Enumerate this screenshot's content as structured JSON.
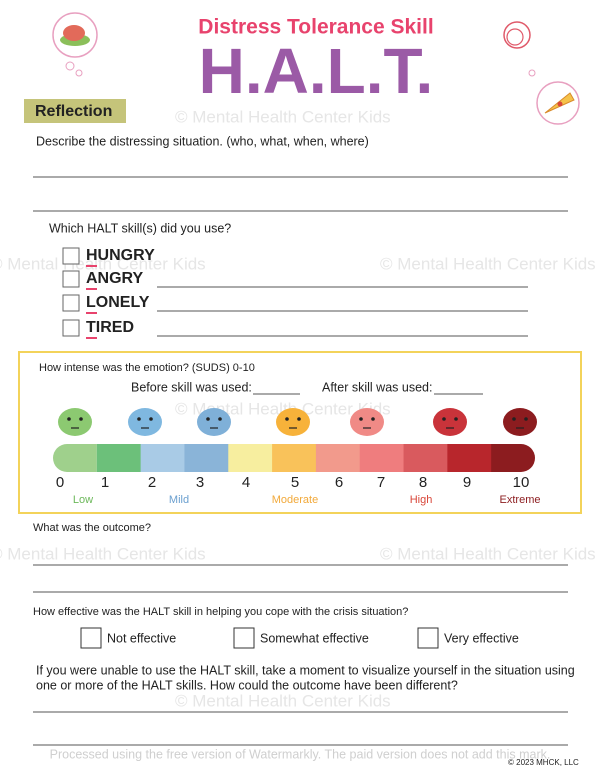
{
  "header": {
    "subtitle": "Distress Tolerance Skill",
    "title": "H.A.L.T."
  },
  "section": "Reflection",
  "questions": {
    "situation": "Describe the distressing situation. (who, what, when, where)",
    "skills": "Which HALT skill(s) did you use?",
    "skill_options": [
      "HUNGRY",
      "ANGRY",
      "LONELY",
      "TIRED"
    ],
    "intensity": "How intense was the emotion? (SUDS) 0-10",
    "before": "Before skill was used:",
    "after": "After skill was used:",
    "outcome": "What was the outcome?",
    "effective": "How effective was the HALT skill in helping you cope with the crisis situation?",
    "effective_options": [
      "Not effective",
      "Somewhat effective",
      "Very effective"
    ],
    "visualize": [
      "If you were unable to use the HALT skill, take a moment to visualize yourself in the situation using",
      "one or more of the HALT skills.  How could the outcome have been different?"
    ]
  },
  "scale": {
    "numbers": [
      0,
      1,
      2,
      3,
      4,
      5,
      6,
      7,
      8,
      9,
      10
    ],
    "labels": [
      "Low",
      "Mild",
      "Moderate",
      "High",
      "Extreme"
    ]
  },
  "watermark": "© Mental Health Center Kids",
  "footer": {
    "notice": "Processed using the free version of Watermarkly. The paid version does not add this mark.",
    "copyright": "© 2023 MHCK, LLC"
  }
}
